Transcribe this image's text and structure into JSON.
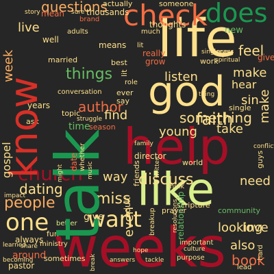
{
  "palette": {
    "background": "#262626",
    "crimson": "#a50f26",
    "red": "#d73027",
    "orange": "#f46d43",
    "peach": "#fdae61",
    "cream": "#fee08b",
    "lightgreen": "#d9ef8b",
    "green": "#66bd63",
    "darkgreen": "#1a9850"
  },
  "words": [
    "talk",
    "weeks",
    "life",
    "god",
    "help",
    "like",
    "know",
    "check",
    "does",
    "church",
    "one",
    "want",
    "questions",
    "people",
    "author",
    "listen",
    "things",
    "faith",
    "book",
    "discuss",
    "dating",
    "miss",
    "way",
    "young",
    "time",
    "feel",
    "sin",
    "live",
    "week",
    "make",
    "hear",
    "take",
    "looking",
    "need",
    "also",
    "love",
    "even",
    "something",
    "find",
    "new",
    "scripture",
    "give",
    "around",
    "pastor",
    "gospel",
    "actually",
    "someone",
    "thousands",
    "well",
    "really",
    "grow",
    "years",
    "ask",
    "topic",
    "adults",
    "adult",
    "community",
    "conversation",
    "relationship",
    "season",
    "better",
    "fun",
    "sometimes",
    "always",
    "ever",
    "say",
    "prayer",
    "think",
    "music",
    "married",
    "means",
    "best",
    "much",
    "ministry",
    "sure",
    "story",
    "brand",
    "mean",
    "work",
    "gives",
    "pray",
    "guys",
    "lit",
    "spiritual",
    "thoughts",
    "share",
    "role",
    "thing",
    "whether",
    "impact",
    "hope",
    "answers",
    "tackle",
    "purpose",
    "lead",
    "break",
    "becoming",
    "learned",
    "might",
    "breakup",
    "important",
    "culture",
    "written",
    "director",
    "friends",
    "world",
    "single",
    "date",
    "family",
    "conflict",
    "resolutions",
    "hard",
    "struggle",
    "singleness",
    "behind",
    "let"
  ]
}
